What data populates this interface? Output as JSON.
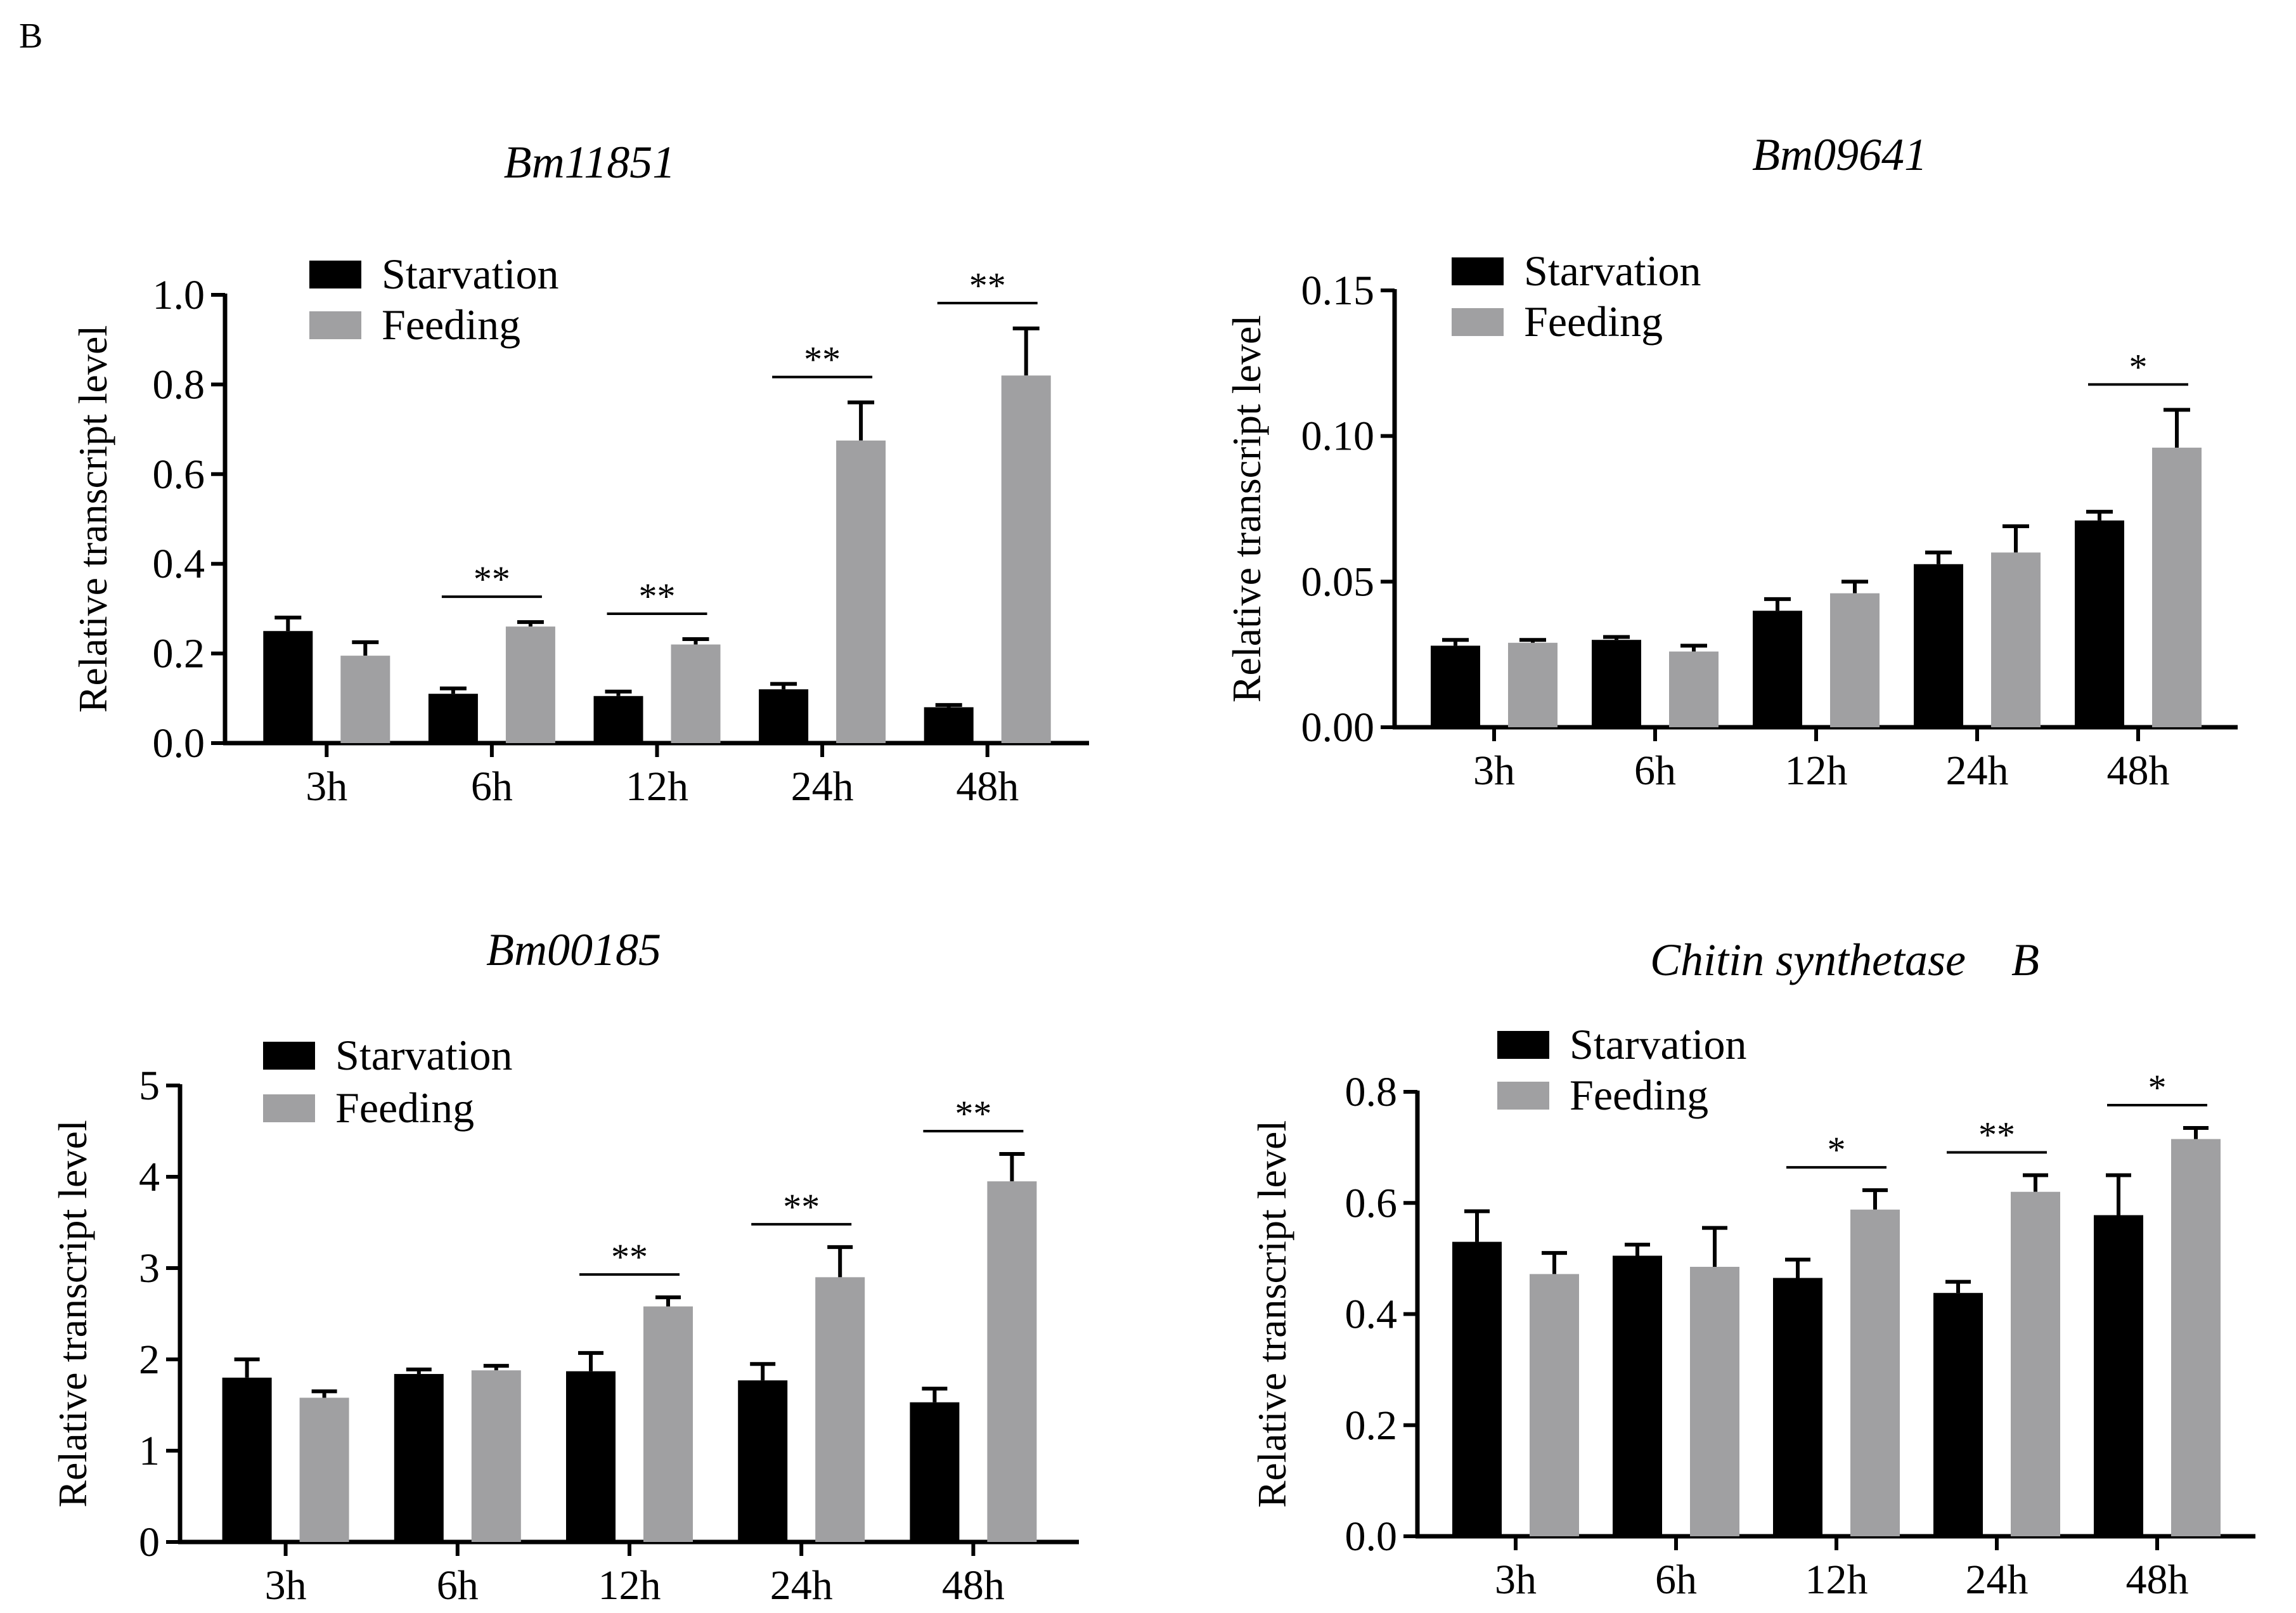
{
  "panel_label": "B",
  "legend": {
    "starvation": "Starvation",
    "feeding": "Feeding"
  },
  "colors": {
    "starvation": "#000000",
    "feeding": "#a0a0a2",
    "axis": "#000000"
  },
  "chart_data": [
    {
      "type": "bar",
      "title": "Bm11851",
      "ylabel": "Relative transcript level",
      "xlabel": "",
      "categories": [
        "3h",
        "6h",
        "12h",
        "24h",
        "48h"
      ],
      "ylim": [
        0,
        1.0
      ],
      "yticks": [
        "0.0",
        "0.2",
        "0.4",
        "0.6",
        "0.8",
        "1.0"
      ],
      "series": [
        {
          "name": "Starvation",
          "values": [
            0.25,
            0.11,
            0.105,
            0.12,
            0.08
          ],
          "errors": [
            0.03,
            0.012,
            0.01,
            0.012,
            0.005
          ]
        },
        {
          "name": "Feeding",
          "values": [
            0.195,
            0.26,
            0.22,
            0.675,
            0.82
          ],
          "errors": [
            0.03,
            0.01,
            0.012,
            0.085,
            0.105
          ]
        }
      ],
      "significance": [
        {
          "category": "6h",
          "label": "**"
        },
        {
          "category": "12h",
          "label": "**"
        },
        {
          "category": "24h",
          "label": "**"
        },
        {
          "category": "48h",
          "label": "**"
        }
      ]
    },
    {
      "type": "bar",
      "title": "Bm09641",
      "ylabel": "Relative transcript level",
      "xlabel": "",
      "categories": [
        "3h",
        "6h",
        "12h",
        "24h",
        "48h"
      ],
      "ylim": [
        0,
        0.15
      ],
      "yticks": [
        "0.00",
        "0.05",
        "0.10",
        "0.15"
      ],
      "series": [
        {
          "name": "Starvation",
          "values": [
            0.028,
            0.03,
            0.04,
            0.056,
            0.071
          ],
          "errors": [
            0.002,
            0.001,
            0.004,
            0.004,
            0.003
          ]
        },
        {
          "name": "Feeding",
          "values": [
            0.029,
            0.026,
            0.046,
            0.06,
            0.096
          ],
          "errors": [
            0.001,
            0.002,
            0.004,
            0.009,
            0.013
          ]
        }
      ],
      "significance": [
        {
          "category": "48h",
          "label": "*"
        }
      ]
    },
    {
      "type": "bar",
      "title": "Bm00185",
      "ylabel": "Relative transcript level",
      "xlabel": "",
      "categories": [
        "3h",
        "6h",
        "12h",
        "24h",
        "48h"
      ],
      "ylim": [
        0,
        5
      ],
      "yticks": [
        "0",
        "1",
        "2",
        "3",
        "4",
        "5"
      ],
      "series": [
        {
          "name": "Starvation",
          "values": [
            1.8,
            1.84,
            1.87,
            1.77,
            1.53
          ],
          "errors": [
            0.2,
            0.05,
            0.2,
            0.18,
            0.15
          ]
        },
        {
          "name": "Feeding",
          "values": [
            1.58,
            1.88,
            2.58,
            2.9,
            3.95
          ],
          "errors": [
            0.07,
            0.05,
            0.1,
            0.33,
            0.3
          ]
        }
      ],
      "significance": [
        {
          "category": "12h",
          "label": "**"
        },
        {
          "category": "24h",
          "label": "**"
        },
        {
          "category": "48h",
          "label": "**"
        }
      ]
    },
    {
      "type": "bar",
      "title": "Chitin synthetase　B",
      "ylabel": "Relative transcript level",
      "xlabel": "",
      "categories": [
        "3h",
        "6h",
        "12h",
        "24h",
        "48h"
      ],
      "ylim": [
        0,
        0.8
      ],
      "yticks": [
        "0.0",
        "0.2",
        "0.4",
        "0.6",
        "0.8"
      ],
      "series": [
        {
          "name": "Starvation",
          "values": [
            0.53,
            0.505,
            0.465,
            0.438,
            0.578
          ],
          "errors": [
            0.055,
            0.02,
            0.033,
            0.02,
            0.072
          ]
        },
        {
          "name": "Feeding",
          "values": [
            0.472,
            0.485,
            0.588,
            0.62,
            0.715
          ],
          "errors": [
            0.038,
            0.07,
            0.035,
            0.03,
            0.02
          ]
        }
      ],
      "significance": [
        {
          "category": "12h",
          "label": "*"
        },
        {
          "category": "24h",
          "label": "**"
        },
        {
          "category": "48h",
          "label": "*"
        }
      ]
    }
  ]
}
